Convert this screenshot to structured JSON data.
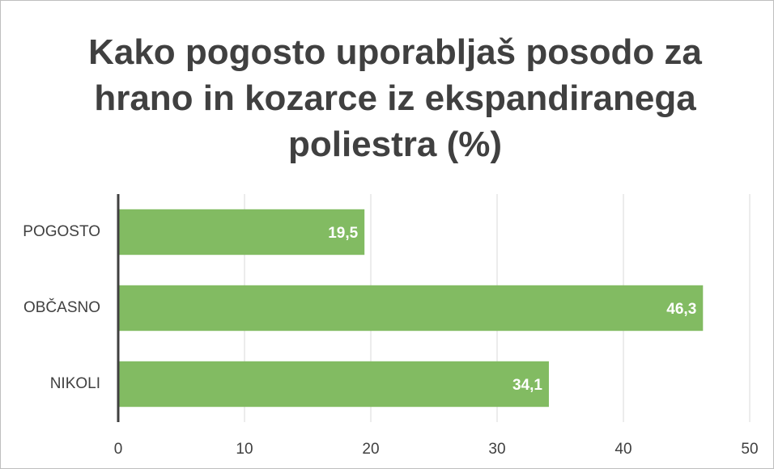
{
  "chart_data": {
    "type": "bar",
    "orientation": "horizontal",
    "title": "Kako pogosto uporabljaš posodo za hrano in kozarce iz ekspandiranega poliestra (%)",
    "categories": [
      "POGOSTO",
      "OBČASNO",
      "NIKOLI"
    ],
    "values": [
      19.5,
      46.3,
      34.1
    ],
    "value_labels": [
      "19,5",
      "46,3",
      "34,1"
    ],
    "color": "#82bb62",
    "xlim": [
      0,
      50
    ],
    "xticks": [
      0,
      10,
      20,
      30,
      40,
      50
    ],
    "grid": true
  }
}
